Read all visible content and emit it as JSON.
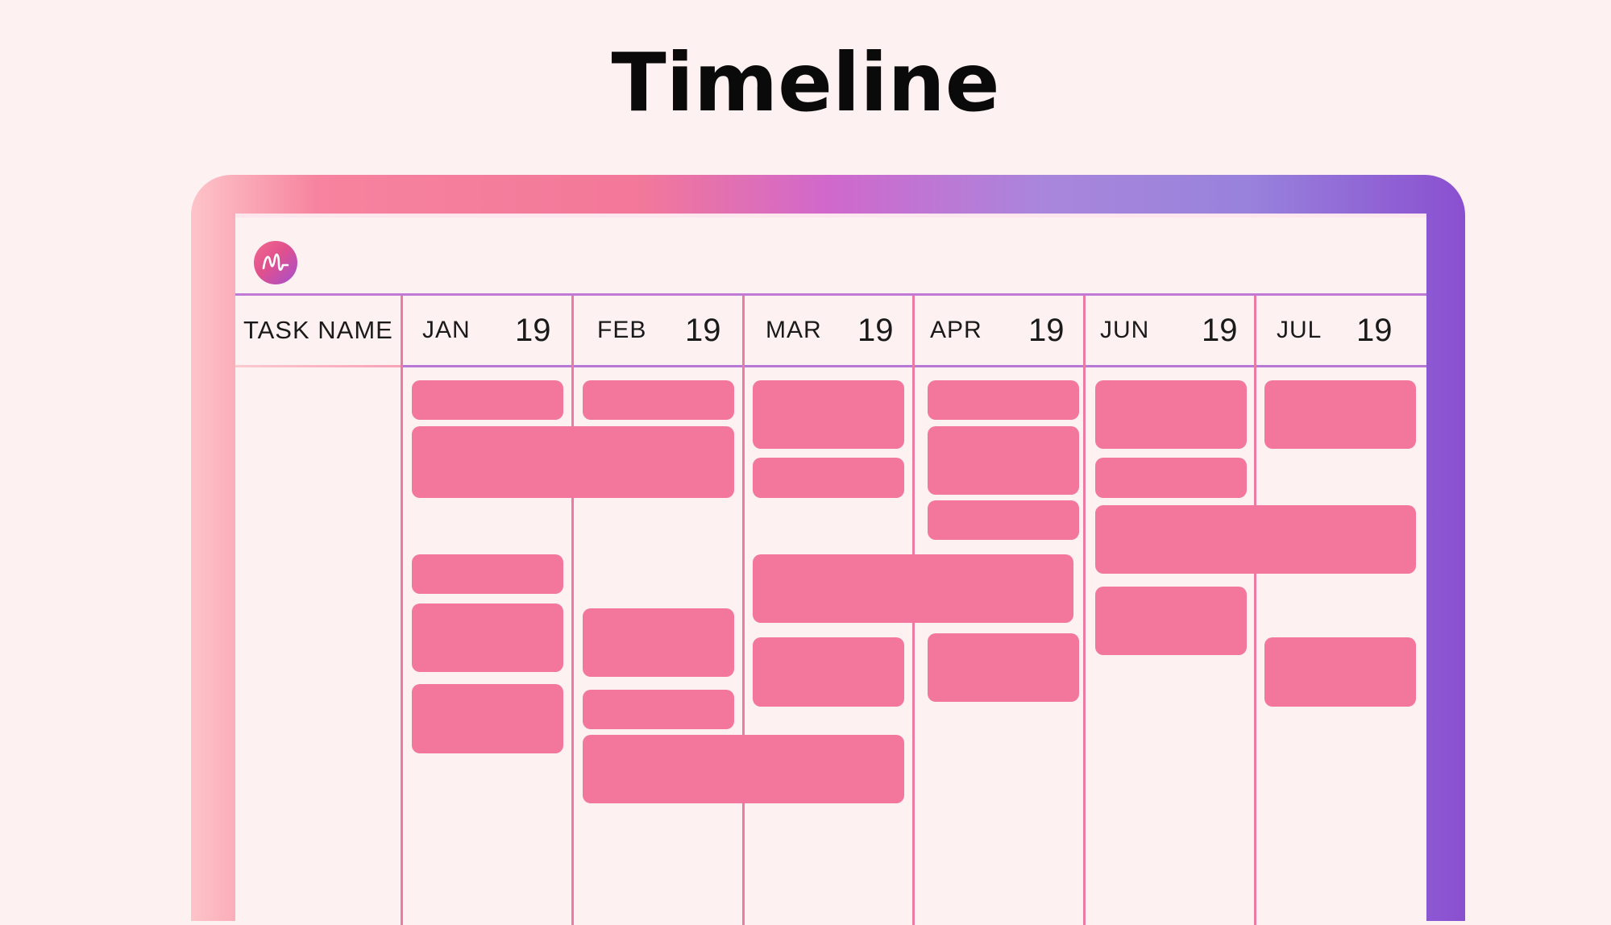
{
  "page": {
    "title": "Timeline"
  },
  "app": {
    "logo_icon": "m-wave-logo-icon"
  },
  "grid": {
    "task_column_title": "TASK NAME",
    "months": [
      {
        "month": "JAN",
        "year": "19"
      },
      {
        "month": "FEB",
        "year": "19"
      },
      {
        "month": "MAR",
        "year": "19"
      },
      {
        "month": "APR",
        "year": "19"
      },
      {
        "month": "JUN",
        "year": "19"
      },
      {
        "month": "JUL",
        "year": "19"
      }
    ]
  },
  "colors": {
    "background": "#fdf1f1",
    "bar": "#f3779c",
    "gridline": "#ec7ba3",
    "frame_gradient": [
      "#fdc4c8",
      "#f37899",
      "#d068cc",
      "#9882dc",
      "#8a4fd0"
    ]
  }
}
